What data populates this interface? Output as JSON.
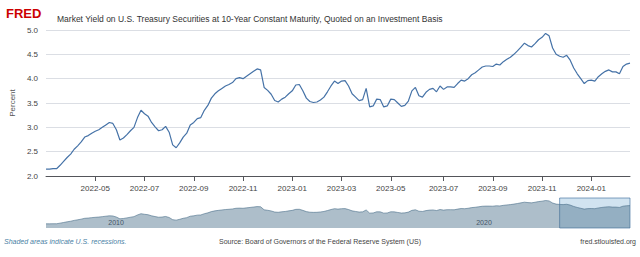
{
  "chart_data": [
    {
      "type": "line",
      "title": "Market Yield on U.S. Treasury Securities at 10-Year Constant Maturity, Quoted on an Investment Basis",
      "ylabel": "Percent",
      "annotations": [
        "FRED",
        "Shaded areas indicate U.S. recessions.",
        "Source: Board of Governors of the Federal Reserve System (US)",
        "fred.stlouisfed.org"
      ],
      "categories": [
        null,
        null,
        null,
        null,
        null,
        null,
        null,
        null,
        null,
        null,
        null,
        null,
        null,
        null,
        "2022-05",
        null,
        null,
        null,
        null,
        null,
        null,
        null,
        null,
        null,
        null,
        null,
        null,
        null,
        "2022-07",
        null,
        null,
        null,
        null,
        null,
        null,
        null,
        null,
        null,
        null,
        null,
        null,
        null,
        "2022-09",
        null,
        null,
        null,
        null,
        null,
        null,
        null,
        null,
        null,
        null,
        null,
        null,
        null,
        "2022-11",
        null,
        null,
        null,
        null,
        null,
        null,
        null,
        null,
        null,
        null,
        null,
        null,
        null,
        "2023-01",
        null,
        null,
        null,
        null,
        null,
        null,
        null,
        null,
        null,
        null,
        null,
        null,
        null,
        "2023-03",
        null,
        null,
        null,
        null,
        null,
        null,
        null,
        null,
        null,
        null,
        null,
        null,
        null,
        "2023-05",
        null,
        null,
        null,
        null,
        null,
        null,
        null,
        null,
        null,
        null,
        null,
        null,
        null,
        null,
        "2023-07",
        null,
        null,
        null,
        null,
        null,
        null,
        null,
        null,
        null,
        null,
        null,
        null,
        null,
        "2023-09",
        null,
        null,
        null,
        null,
        null,
        null,
        null,
        null,
        null,
        null,
        null,
        null,
        null,
        "2023-11",
        null,
        null,
        null,
        null,
        null,
        null,
        null,
        null,
        null,
        null,
        null,
        null,
        null,
        "2024-01",
        null,
        null,
        null,
        null,
        null,
        null,
        null,
        null,
        null,
        null,
        null
      ],
      "values": [
        2.14,
        2.14,
        2.15,
        2.15,
        2.22,
        2.3,
        2.38,
        2.45,
        2.55,
        2.62,
        2.7,
        2.8,
        2.83,
        2.88,
        2.92,
        2.95,
        3.0,
        3.05,
        3.1,
        3.08,
        2.95,
        2.74,
        2.78,
        2.85,
        2.93,
        3.0,
        3.2,
        3.35,
        3.28,
        3.23,
        3.1,
        3.01,
        2.93,
        2.95,
        3.02,
        2.9,
        2.64,
        2.58,
        2.68,
        2.8,
        2.88,
        3.05,
        3.1,
        3.18,
        3.2,
        3.35,
        3.45,
        3.6,
        3.69,
        3.75,
        3.8,
        3.85,
        3.88,
        3.92,
        4.0,
        4.02,
        4.0,
        4.05,
        4.1,
        4.15,
        4.2,
        4.18,
        3.82,
        3.76,
        3.68,
        3.55,
        3.52,
        3.58,
        3.62,
        3.69,
        3.75,
        3.87,
        3.88,
        3.75,
        3.6,
        3.53,
        3.51,
        3.52,
        3.56,
        3.62,
        3.73,
        3.85,
        3.95,
        3.9,
        3.95,
        3.96,
        3.85,
        3.69,
        3.62,
        3.55,
        3.57,
        3.8,
        3.42,
        3.44,
        3.58,
        3.57,
        3.42,
        3.44,
        3.58,
        3.57,
        3.5,
        3.43,
        3.45,
        3.54,
        3.75,
        3.82,
        3.65,
        3.62,
        3.72,
        3.78,
        3.8,
        3.73,
        3.85,
        3.78,
        3.83,
        3.83,
        3.82,
        3.9,
        3.97,
        3.95,
        4.0,
        4.08,
        4.12,
        4.18,
        4.24,
        4.26,
        4.26,
        4.25,
        4.3,
        4.28,
        4.35,
        4.4,
        4.44,
        4.5,
        4.57,
        4.65,
        4.73,
        4.68,
        4.65,
        4.72,
        4.8,
        4.85,
        4.93,
        4.88,
        4.63,
        4.5,
        4.46,
        4.44,
        4.48,
        4.38,
        4.22,
        4.1,
        4.0,
        3.9,
        3.96,
        3.97,
        3.95,
        4.04,
        4.1,
        4.15,
        4.18,
        4.14,
        4.14,
        4.1,
        4.25,
        4.3,
        4.32
      ],
      "color": "#4572a7",
      "ylim": [
        2.0,
        5.0
      ],
      "yticks": [
        {
          "value": 2.0,
          "label": "2.0"
        },
        {
          "value": 2.5,
          "label": "2.5"
        },
        {
          "value": 3.0,
          "label": "3.0"
        },
        {
          "value": 3.5,
          "label": "3.5"
        },
        {
          "value": 4.0,
          "label": "4.0"
        },
        {
          "value": 4.5,
          "label": "4.5"
        },
        {
          "value": 5.0,
          "label": "5.0"
        }
      ],
      "grid": true
    },
    {
      "type": "area",
      "annotations": [
        "2010",
        "2020"
      ],
      "values": [
        2.14,
        2.14,
        2.15,
        2.15,
        2.22,
        2.3,
        2.38,
        2.45,
        2.55,
        2.62,
        2.7,
        2.8,
        2.83,
        2.88,
        2.92,
        2.95,
        3.0,
        3.05,
        3.1,
        3.08,
        2.95,
        2.74,
        2.78,
        2.85,
        2.93,
        3.0,
        3.2,
        3.35,
        3.28,
        3.23,
        3.1,
        3.01,
        2.93,
        2.95,
        3.02,
        2.9,
        2.64,
        2.58,
        2.68,
        2.8,
        2.88,
        3.05,
        3.1,
        3.18,
        3.2,
        3.35,
        3.45,
        3.6,
        3.69,
        3.75,
        3.8,
        3.85,
        3.88,
        3.92,
        4.0,
        4.02,
        4.0,
        4.05,
        4.1,
        4.15,
        4.2,
        4.18,
        3.82,
        3.76,
        3.68,
        3.55,
        3.52,
        3.58,
        3.62,
        3.69,
        3.75,
        3.87,
        3.88,
        3.75,
        3.6,
        3.53,
        3.51,
        3.52,
        3.56,
        3.62,
        3.73,
        3.85,
        3.95,
        3.9,
        3.95,
        3.96,
        3.85,
        3.69,
        3.62,
        3.55,
        3.57,
        3.8,
        3.42,
        3.44,
        3.58,
        3.57,
        3.42,
        3.44,
        3.58,
        3.57,
        3.5,
        3.43,
        3.45,
        3.54,
        3.75,
        3.82,
        3.65,
        3.62,
        3.72,
        3.78,
        3.8,
        3.73,
        3.85,
        3.78,
        3.83,
        3.83,
        3.82,
        3.9,
        3.97,
        3.95,
        4.0,
        4.08,
        4.12,
        4.18,
        4.24,
        4.26,
        4.26,
        4.25,
        4.3,
        4.28,
        4.35,
        4.4,
        4.44,
        4.5,
        4.57,
        4.65,
        4.73,
        4.68,
        4.65,
        4.72,
        4.8,
        4.85,
        4.93,
        4.88,
        4.63,
        4.5,
        4.46,
        4.44,
        4.48,
        4.38,
        4.22,
        4.1,
        4.0,
        3.9,
        3.96,
        3.97,
        3.95,
        4.04,
        4.1,
        4.15,
        4.18,
        4.14,
        4.14,
        4.1,
        4.25,
        4.3,
        4.32
      ],
      "color": "#4a6e8a",
      "ylim": [
        1.64,
        5.23
      ],
      "tick_labels": false
    }
  ]
}
